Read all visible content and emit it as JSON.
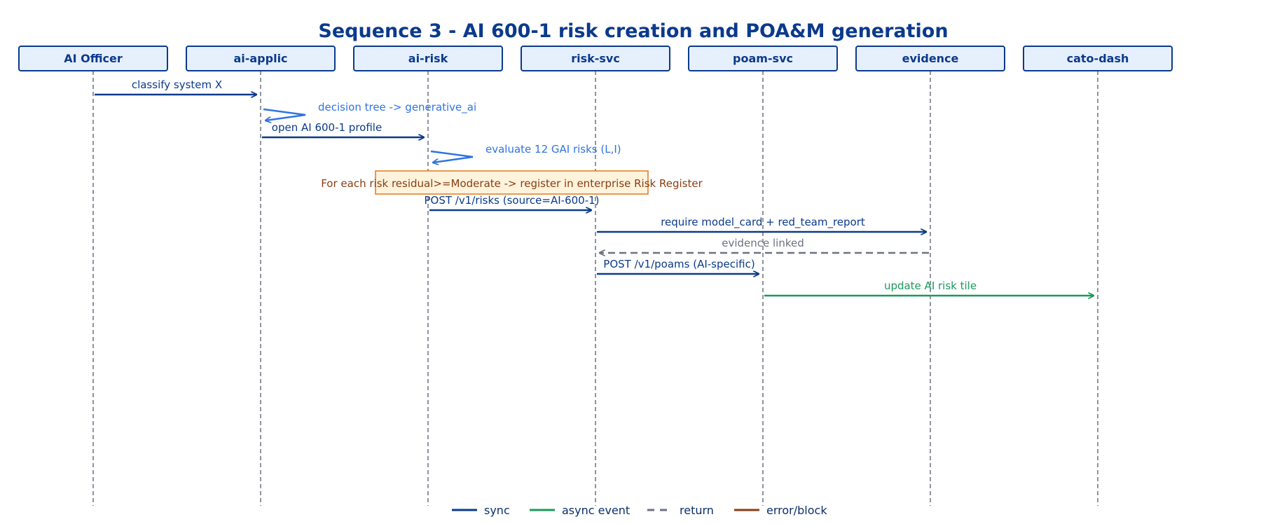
{
  "diagram": {
    "title": "Sequence 3 - AI 600-1 risk creation and POA&M generation",
    "colors": {
      "sync": "#0b3a8c",
      "self": "#2f74e0",
      "async": "#1a9a5a",
      "return": "#6b7280",
      "error": "#8a3d12",
      "actor_fill": "#e6effc",
      "note_fill": "#fff3dc",
      "note_stroke": "#e07b1a"
    },
    "actors": [
      {
        "id": "officer",
        "label": "AI Officer"
      },
      {
        "id": "applic",
        "label": "ai-applic"
      },
      {
        "id": "risk",
        "label": "ai-risk"
      },
      {
        "id": "risksvc",
        "label": "risk-svc"
      },
      {
        "id": "poam",
        "label": "poam-svc"
      },
      {
        "id": "evidence",
        "label": "evidence"
      },
      {
        "id": "cato",
        "label": "cato-dash"
      }
    ],
    "messages": [
      {
        "from": "officer",
        "to": "applic",
        "label": "classify system X",
        "kind": "sync"
      },
      {
        "from": "applic",
        "to": "applic",
        "label": "decision tree -> generative_ai",
        "kind": "self"
      },
      {
        "from": "applic",
        "to": "risk",
        "label": "open AI 600-1 profile",
        "kind": "sync"
      },
      {
        "from": "risk",
        "to": "risk",
        "label": "evaluate 12 GAI risks (L,I)",
        "kind": "self"
      },
      {
        "note": true,
        "over": [
          "risk",
          "risksvc"
        ],
        "label": "For each risk residual>=Moderate -> register in enterprise Risk Register"
      },
      {
        "from": "risk",
        "to": "risksvc",
        "label": "POST /v1/risks (source=AI-600-1)",
        "kind": "sync"
      },
      {
        "from": "risksvc",
        "to": "evidence",
        "label": "require model_card + red_team_report",
        "kind": "sync"
      },
      {
        "from": "evidence",
        "to": "risksvc",
        "label": "evidence linked",
        "kind": "return"
      },
      {
        "from": "risksvc",
        "to": "poam",
        "label": "POST /v1/poams (AI-specific)",
        "kind": "sync"
      },
      {
        "from": "poam",
        "to": "cato",
        "label": "update AI risk tile",
        "kind": "async"
      }
    ],
    "legend": [
      {
        "kind": "sync",
        "label": "sync"
      },
      {
        "kind": "async",
        "label": "async event"
      },
      {
        "kind": "return",
        "label": "return"
      },
      {
        "kind": "error",
        "label": "error/block"
      }
    ]
  }
}
